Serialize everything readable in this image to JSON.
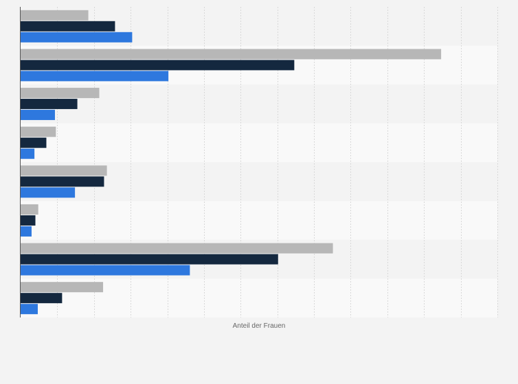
{
  "chart_data": {
    "type": "bar",
    "orientation": "horizontal",
    "xlabel": "Anteil der Frauen",
    "ylabel": "",
    "xlim": [
      0,
      1
    ],
    "grid": true,
    "legend": "none",
    "categories": [
      "",
      "",
      "",
      "",
      "",
      "",
      "",
      ""
    ],
    "series": [
      {
        "color": "#b7b7b7",
        "values": [
          0.142,
          0.882,
          0.165,
          0.074,
          0.181,
          0.037,
          0.655,
          0.173
        ]
      },
      {
        "color": "#14283f",
        "values": [
          0.198,
          0.574,
          0.119,
          0.054,
          0.175,
          0.031,
          0.54,
          0.087
        ]
      },
      {
        "color": "#2e78de",
        "values": [
          0.234,
          0.31,
          0.072,
          0.029,
          0.114,
          0.023,
          0.355,
          0.036
        ]
      }
    ]
  }
}
